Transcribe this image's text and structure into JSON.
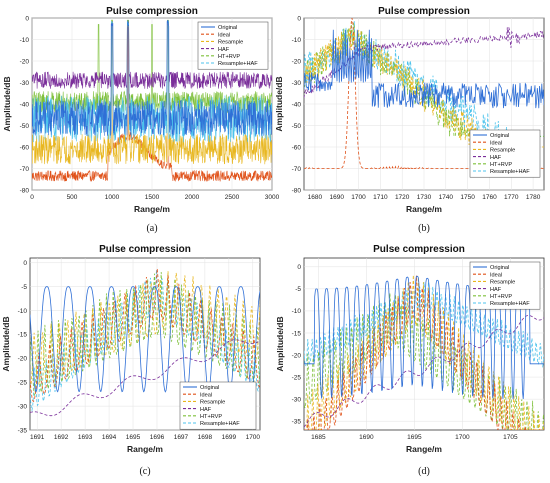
{
  "figure": {
    "series_styles": [
      {
        "name": "Original",
        "color": "#2f6fd6",
        "dash": "solid"
      },
      {
        "name": "Ideal",
        "color": "#e0521a",
        "dash": "dash"
      },
      {
        "name": "Resample",
        "color": "#e8b720",
        "dash": "dash"
      },
      {
        "name": "HAF",
        "color": "#7a2e9a",
        "dash": "dash"
      },
      {
        "name": "HT+RVP",
        "color": "#7ec03a",
        "dash": "dash"
      },
      {
        "name": "Resample+HAF",
        "color": "#4cc3ec",
        "dash": "dash"
      }
    ]
  },
  "chart_data": [
    {
      "id": "a",
      "caption": "(a)",
      "type": "line",
      "title": "Pulse compression",
      "xlabel": "Range/m",
      "ylabel": "Amplitude/dB",
      "xlim": [
        0,
        3000
      ],
      "ylim": [
        -80,
        0
      ],
      "xticks": [
        0,
        500,
        1000,
        1500,
        2000,
        2500,
        3000
      ],
      "yticks": [
        0,
        -10,
        -20,
        -30,
        -40,
        -50,
        -60,
        -70,
        -80
      ],
      "legend": "top-right",
      "grid": true,
      "series": [
        {
          "name": "Original",
          "approx": "noise floor -60 to -40 dB, peaks to about -1 dB near 1000, 1200, 1700 m"
        },
        {
          "name": "Ideal",
          "approx": "floor about -75 dB, rising toward -55 dB between 1000 and 1700 m, peaks near 0 dB"
        },
        {
          "name": "Resample",
          "approx": "floor -75 to -55 dB, peaks near 0 dB"
        },
        {
          "name": "HAF",
          "approx": "floor near -30 dB across full range, peaks near 0 dB"
        },
        {
          "name": "HT+RVP",
          "approx": "floor near -40 dB, peaks near 0 dB"
        },
        {
          "name": "Resample+HAF",
          "approx": "floor -60 to -35 dB, peaks near 0 dB"
        }
      ],
      "x_peaks": [
        830,
        1000,
        1200,
        1500,
        1700
      ]
    },
    {
      "id": "b",
      "caption": "(b)",
      "type": "line",
      "title": "Pulse compression",
      "xlabel": "Range/m",
      "ylabel": "Amplitude/dB",
      "xlim": [
        1675,
        1785
      ],
      "ylim": [
        -80,
        0
      ],
      "xticks": [
        1680,
        1690,
        1700,
        1710,
        1720,
        1730,
        1740,
        1750,
        1760,
        1770,
        1780
      ],
      "yticks": [
        0,
        -10,
        -20,
        -30,
        -40,
        -50,
        -60,
        -70,
        -80
      ],
      "legend": "bottom-right",
      "grid": true,
      "series": [
        {
          "name": "Original",
          "approx": "sidelobes -5 dB at 1685-1705, main around -2 dB, floor -45 to -35 dB beyond 1710"
        },
        {
          "name": "Ideal",
          "approx": "peak near 0 dB at 1697, floor about -70 dB"
        },
        {
          "name": "Resample",
          "approx": "peak near 0 dB at 1697, decays to -45 dB"
        },
        {
          "name": "HAF",
          "approx": "-30 dB at 1680, rising to -10 dB near 1710 and about -5 dB near 1770"
        },
        {
          "name": "HT+RVP",
          "approx": "peak near 0 dB, decays to -40 dB"
        },
        {
          "name": "Resample+HAF",
          "approx": "peak near -1 dB at 1698, decays to -40 dB"
        }
      ]
    },
    {
      "id": "c",
      "caption": "(c)",
      "type": "line",
      "title": "Pulse compression",
      "xlabel": "Range/m",
      "ylabel": "Amplitude/dB",
      "xlim": [
        1690.7,
        1700.3
      ],
      "ylim": [
        -35,
        1
      ],
      "xticks": [
        1691,
        1692,
        1693,
        1694,
        1695,
        1696,
        1697,
        1698,
        1699,
        1700
      ],
      "yticks": [
        0,
        -5,
        -10,
        -15,
        -20,
        -25,
        -30,
        -35
      ],
      "legend": "bottom-right",
      "grid": true,
      "series": [
        {
          "name": "Original",
          "approx": "periodic lobes about -5 dB with nulls to -25 dB, period about 0.9 m"
        },
        {
          "name": "Ideal",
          "approx": "peak near -1 dB at 1696, sidelobes -10 to -30 dB"
        },
        {
          "name": "Resample",
          "approx": "peak near 0 dB at 1696.8, lobes -5 to -30 dB"
        },
        {
          "name": "HAF",
          "approx": "rising from -32 dB at 1691 to -15 dB at 1700"
        },
        {
          "name": "HT+RVP",
          "approx": "peaks near -1 dB around 1695-1697"
        },
        {
          "name": "Resample+HAF",
          "approx": "peak near 0 dB at 1696, lobes down to -35 dB"
        }
      ]
    },
    {
      "id": "d",
      "caption": "(d)",
      "type": "line",
      "title": "Pulse compression",
      "xlabel": "Range/m",
      "ylabel": "Amplitude/dB",
      "xlim": [
        1683.5,
        1708.5
      ],
      "ylim": [
        -37,
        2
      ],
      "xticks": [
        1685,
        1690,
        1695,
        1700,
        1705
      ],
      "yticks": [
        0,
        -5,
        -10,
        -15,
        -20,
        -25,
        -30,
        -35
      ],
      "legend": "top-right",
      "grid": true,
      "series": [
        {
          "name": "Original",
          "approx": "lobes -5 to -2 dB between 1685 and 1705, nulls to -30 dB"
        },
        {
          "name": "Ideal",
          "approx": "peak near 0 dB at 1695, sidelobes down to -35 dB"
        },
        {
          "name": "Resample",
          "approx": "peak near -1 dB at 1695"
        },
        {
          "name": "HAF",
          "approx": "-35 dB at 1685 rising to -12 dB at 1708"
        },
        {
          "name": "HT+RVP",
          "approx": "lobes -5 to -30 dB around 1690-1695"
        },
        {
          "name": "Resample+HAF",
          "approx": "lobes -2 to -10 dB, peaks near -1 dB at 1695 and 1706"
        }
      ]
    }
  ]
}
